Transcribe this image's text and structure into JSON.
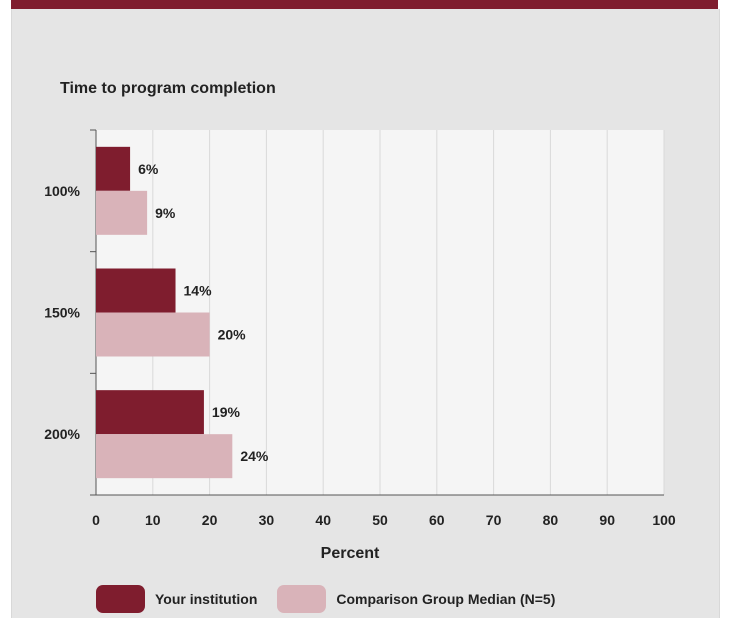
{
  "chart_data": {
    "type": "bar",
    "orientation": "horizontal",
    "title": "Time to program completion",
    "categories": [
      "100%",
      "150%",
      "200%"
    ],
    "series": [
      {
        "name": "Your institution",
        "values": [
          6,
          14,
          19
        ],
        "color": "#7f1d2e"
      },
      {
        "name": "Comparison Group Median (N=5)",
        "values": [
          9,
          20,
          24
        ],
        "color": "#d9b3b9"
      }
    ],
    "value_suffix": "%",
    "xlabel": "Percent",
    "ylabel": "",
    "xlim": [
      0,
      100
    ],
    "xticks": [
      0,
      10,
      20,
      30,
      40,
      50,
      60,
      70,
      80,
      90,
      100
    ],
    "grid": true,
    "legend_position": "bottom"
  }
}
